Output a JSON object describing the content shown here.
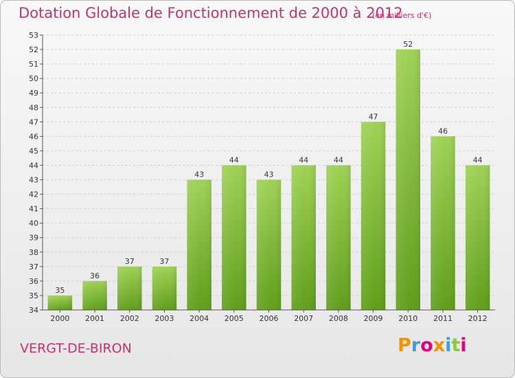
{
  "title": "Dotation Globale de Fonctionnement de 2000 à 2012",
  "subtitle": "(en milliers d'€)",
  "place": "VERGT-DE-BIRON",
  "logo": {
    "letters": [
      "P",
      "r",
      "o",
      "x",
      "i",
      "t",
      "i"
    ],
    "colors": [
      "#f29400",
      "#3aa0db",
      "#e4007c",
      "#f29400",
      "#3aa0db",
      "#8dc63f",
      "#e4007c"
    ]
  },
  "colors": {
    "bar_top": "#9fd155",
    "bar_bottom": "#5f9e1a",
    "title": "#c9326f",
    "grid": "#cfcfcf"
  },
  "chart_data": {
    "type": "bar",
    "categories": [
      "2000",
      "2001",
      "2002",
      "2003",
      "2004",
      "2005",
      "2006",
      "2007",
      "2008",
      "2009",
      "2010",
      "2011",
      "2012"
    ],
    "values": [
      35,
      36,
      37,
      37,
      43,
      44,
      43,
      44,
      44,
      47,
      52,
      46,
      44
    ],
    "ylim": [
      34,
      53
    ],
    "yticks": [
      34,
      35,
      36,
      37,
      38,
      39,
      40,
      41,
      42,
      43,
      44,
      45,
      46,
      47,
      48,
      49,
      50,
      51,
      52,
      53
    ],
    "grid": "horizontal dashed"
  }
}
